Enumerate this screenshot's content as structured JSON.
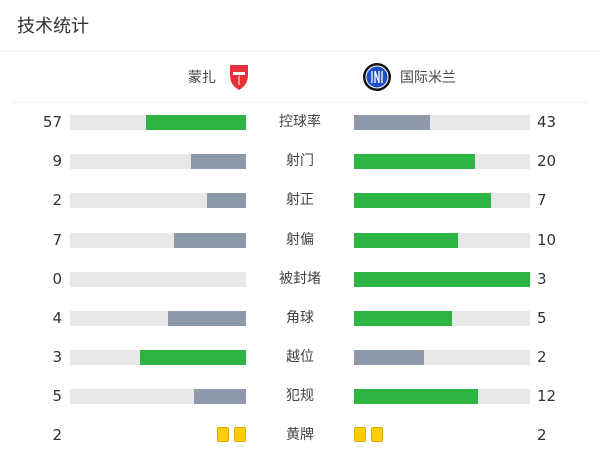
{
  "header": {
    "title": "技术统计"
  },
  "teams": {
    "home": {
      "name": "蒙扎",
      "logo": "monza-crest-icon"
    },
    "away": {
      "name": "国际米兰",
      "logo": "inter-crest-icon"
    }
  },
  "colors": {
    "leader": "#2db543",
    "trailer": "#8e99ab",
    "track": "#e8e8e8",
    "card": "#ffcc00"
  },
  "stats": [
    {
      "label": "控球率",
      "home": "57",
      "away": "43"
    },
    {
      "label": "射门",
      "home": "9",
      "away": "20"
    },
    {
      "label": "射正",
      "home": "2",
      "away": "7"
    },
    {
      "label": "射偏",
      "home": "7",
      "away": "10"
    },
    {
      "label": "被封堵",
      "home": "0",
      "away": "3"
    },
    {
      "label": "角球",
      "home": "4",
      "away": "5"
    },
    {
      "label": "越位",
      "home": "3",
      "away": "2"
    },
    {
      "label": "犯规",
      "home": "5",
      "away": "12"
    }
  ],
  "yellow_cards": {
    "label": "黄牌",
    "home": "2",
    "away": "2"
  }
}
